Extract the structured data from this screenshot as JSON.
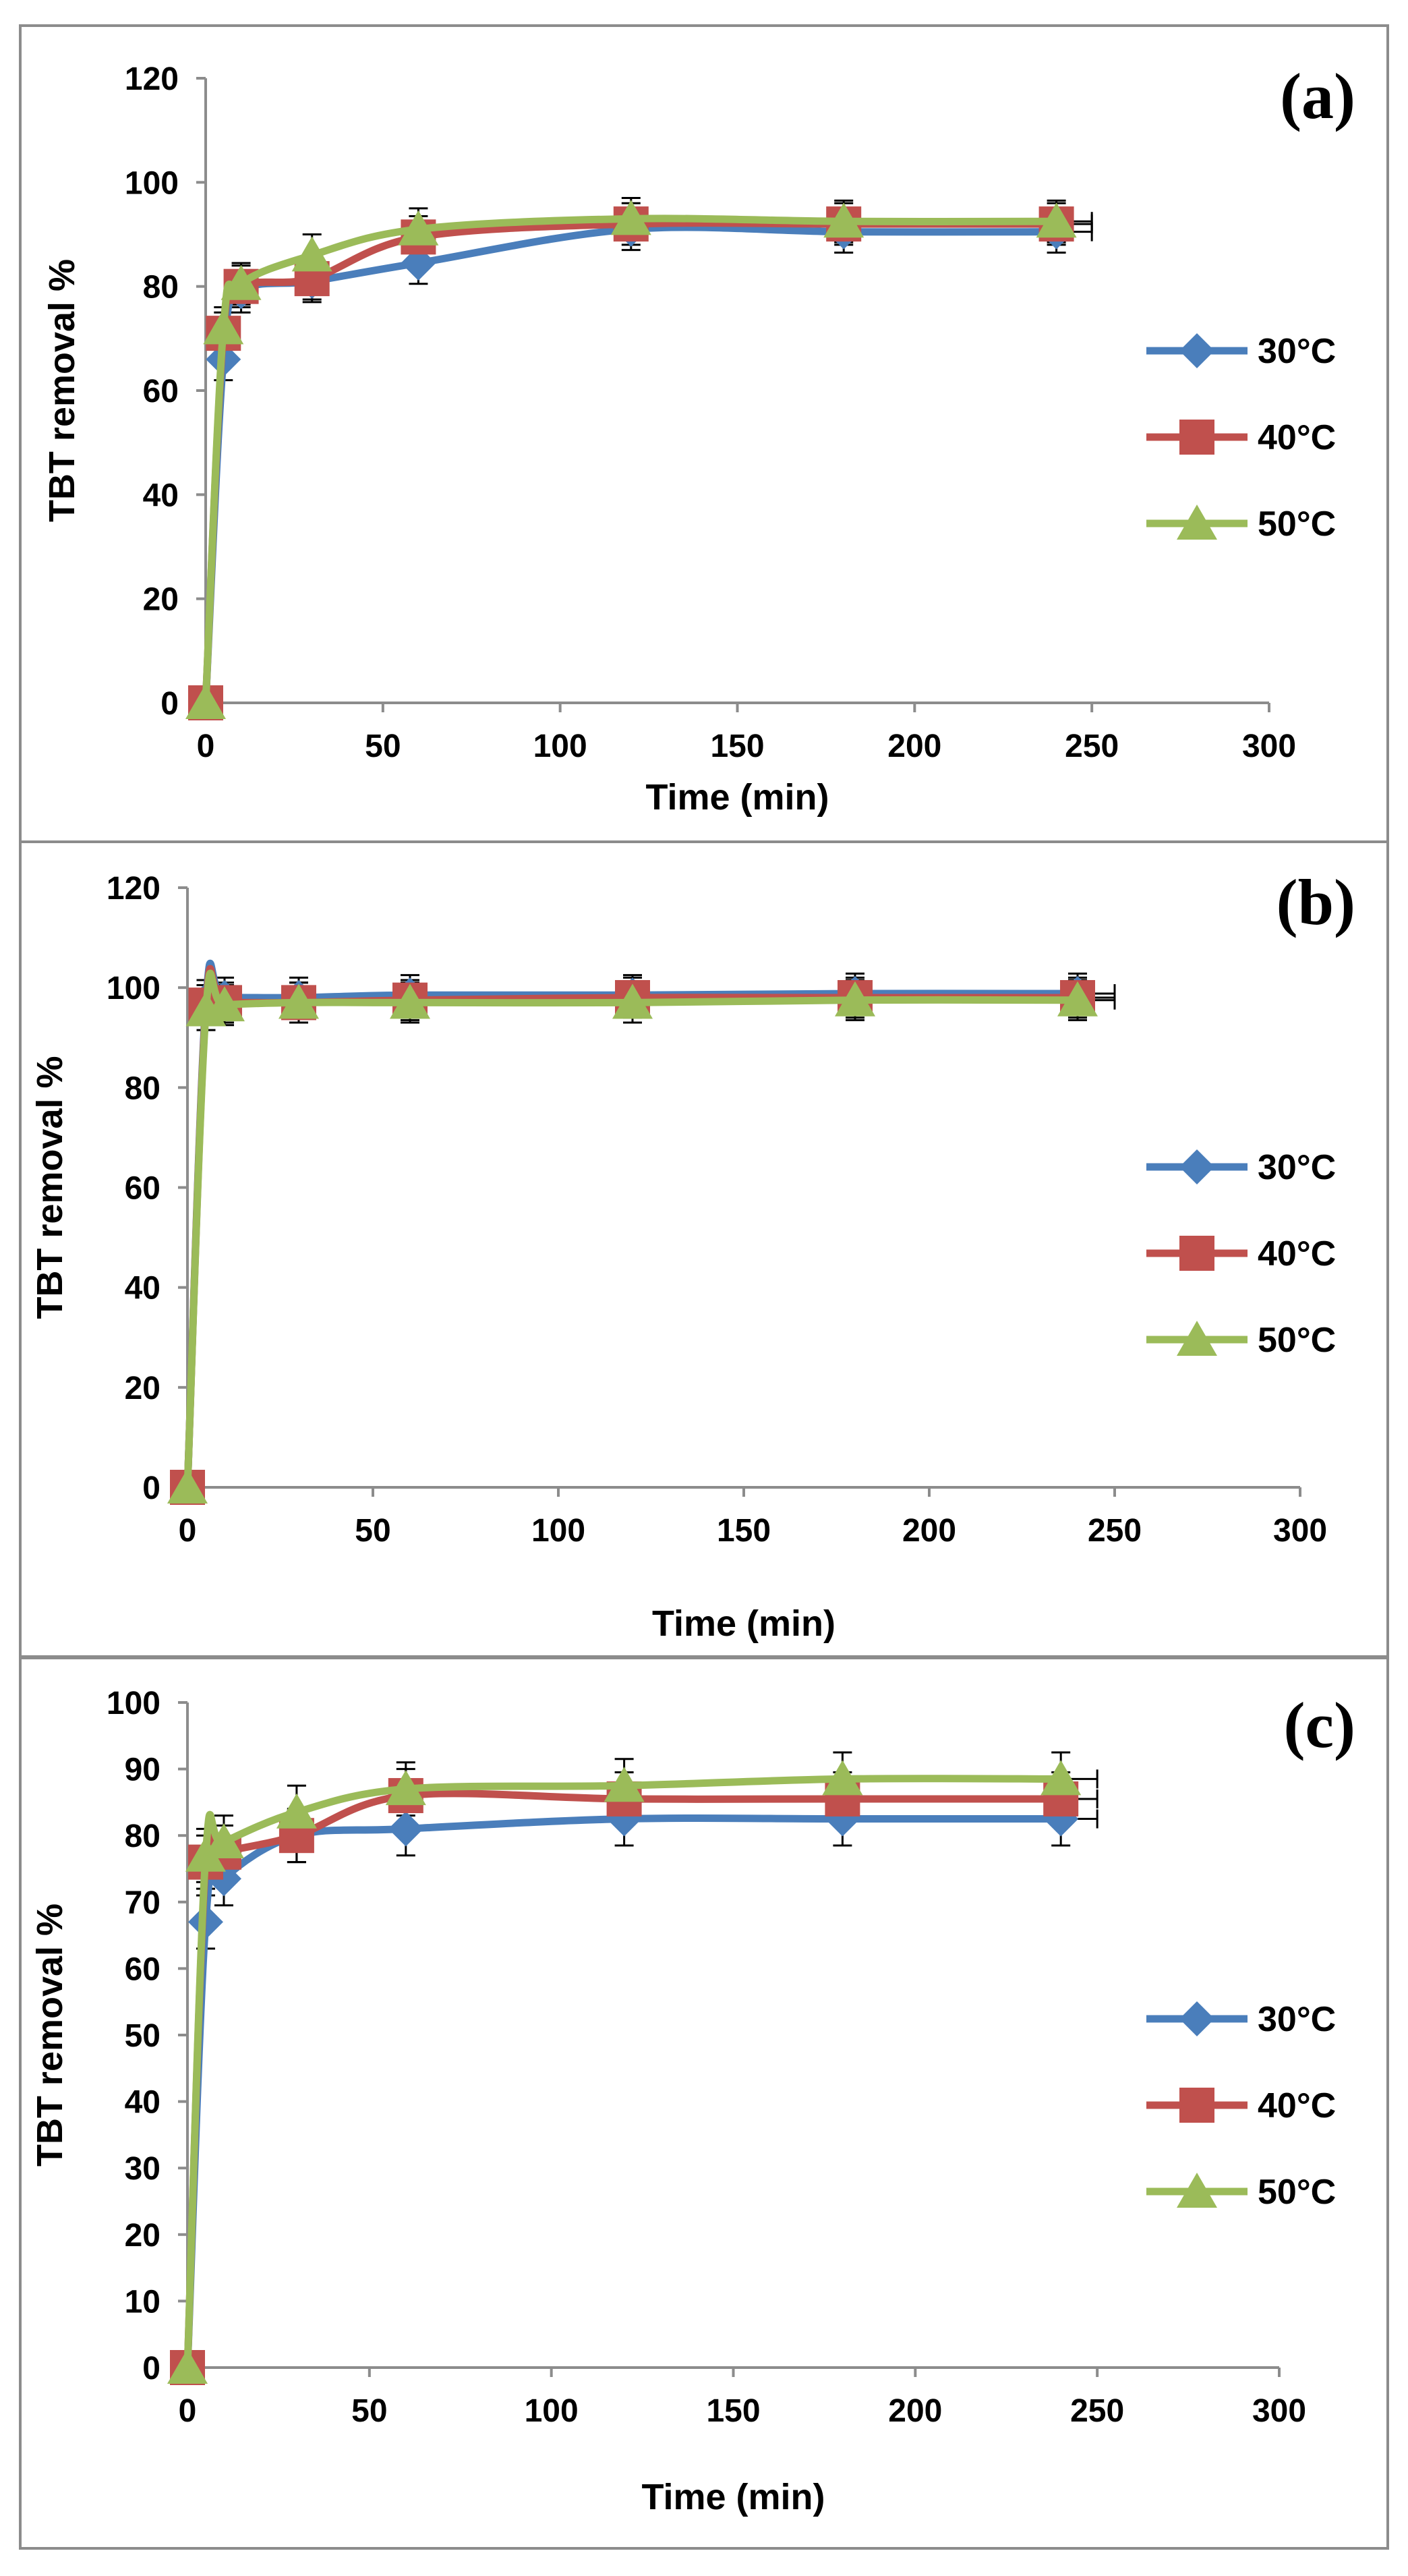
{
  "chart_data": [
    {
      "type": "line",
      "panel_label": "(a)",
      "xlabel": "Time (min)",
      "ylabel": "TBT removal %",
      "xlim": [
        0,
        300
      ],
      "ylim": [
        0,
        120
      ],
      "x_ticks": [
        0,
        50,
        100,
        150,
        200,
        250,
        300
      ],
      "y_ticks": [
        0,
        20,
        40,
        60,
        80,
        100,
        120
      ],
      "grid": false,
      "legend_position": "right",
      "x": [
        0,
        5,
        10,
        30,
        60,
        120,
        180,
        240
      ],
      "series": [
        {
          "name": "30°C",
          "color": "#4a7ebb",
          "marker": "diamond",
          "values": [
            0,
            66,
            79,
            81,
            84.5,
            91,
            90.5,
            90.5
          ],
          "error": [
            0,
            4,
            4,
            4,
            4,
            4,
            4,
            4
          ]
        },
        {
          "name": "40°C",
          "color": "#c0504d",
          "marker": "square",
          "values": [
            0,
            71,
            80,
            81.5,
            89.5,
            92,
            92,
            92
          ],
          "error": [
            0,
            4,
            4,
            4,
            4,
            4,
            4,
            4
          ]
        },
        {
          "name": "50°C",
          "color": "#9bbb59",
          "marker": "triangle",
          "values": [
            0,
            72,
            80.5,
            86,
            91,
            93,
            92.5,
            92.5
          ],
          "error": [
            0,
            4,
            4,
            4,
            4,
            4,
            4,
            4
          ]
        }
      ],
      "x_error_last": 10
    },
    {
      "type": "line",
      "panel_label": "(b)",
      "xlabel": "Time (min)",
      "ylabel": "TBT removal %",
      "xlim": [
        0,
        300
      ],
      "ylim": [
        0,
        120
      ],
      "x_ticks": [
        0,
        50,
        100,
        150,
        200,
        250,
        300
      ],
      "y_ticks": [
        0,
        20,
        40,
        60,
        80,
        100,
        120
      ],
      "grid": false,
      "legend_position": "right",
      "x": [
        0,
        5,
        10,
        30,
        60,
        120,
        180,
        240
      ],
      "series": [
        {
          "name": "30°C",
          "color": "#4a7ebb",
          "marker": "diamond",
          "values": [
            0,
            97.5,
            98,
            98,
            98.5,
            98.5,
            98.8,
            98.8
          ],
          "error": [
            0,
            4,
            4,
            4,
            4,
            4,
            4,
            4
          ]
        },
        {
          "name": "40°C",
          "color": "#c0504d",
          "marker": "square",
          "values": [
            0,
            96.5,
            97,
            97,
            97.5,
            98,
            98,
            98
          ],
          "error": [
            0,
            4,
            4,
            4,
            4,
            4,
            4,
            4
          ]
        },
        {
          "name": "50°C",
          "color": "#9bbb59",
          "marker": "triangle",
          "values": [
            0,
            95.5,
            96.5,
            97,
            97,
            97,
            97.5,
            97.5
          ],
          "error": [
            0,
            4,
            4,
            4,
            4,
            4,
            4,
            4
          ]
        }
      ],
      "x_error_last": 10
    },
    {
      "type": "line",
      "panel_label": "(c)",
      "xlabel": "Time (min)",
      "ylabel": "TBT removal %",
      "xlim": [
        0,
        300
      ],
      "ylim": [
        0,
        100
      ],
      "x_ticks": [
        0,
        50,
        100,
        150,
        200,
        250,
        300
      ],
      "y_ticks": [
        0,
        10,
        20,
        30,
        40,
        50,
        60,
        70,
        80,
        90,
        100
      ],
      "grid": false,
      "legend_position": "right",
      "x": [
        0,
        5,
        10,
        30,
        60,
        120,
        180,
        240
      ],
      "series": [
        {
          "name": "30°C",
          "color": "#4a7ebb",
          "marker": "diamond",
          "values": [
            0,
            67,
            73.5,
            80,
            81,
            82.5,
            82.5,
            82.5
          ],
          "error": [
            0,
            4,
            4,
            4,
            4,
            4,
            4,
            4
          ]
        },
        {
          "name": "40°C",
          "color": "#c0504d",
          "marker": "square",
          "values": [
            0,
            76,
            77.5,
            80,
            86,
            85.5,
            85.5,
            85.5
          ],
          "error": [
            0,
            4,
            4,
            4,
            4,
            4,
            4,
            4
          ]
        },
        {
          "name": "50°C",
          "color": "#9bbb59",
          "marker": "triangle",
          "values": [
            0,
            77,
            79,
            83.5,
            87,
            87.5,
            88.5,
            88.5
          ],
          "error": [
            0,
            4,
            4,
            4,
            4,
            4,
            4,
            4
          ]
        }
      ],
      "x_error_last": 10
    }
  ]
}
